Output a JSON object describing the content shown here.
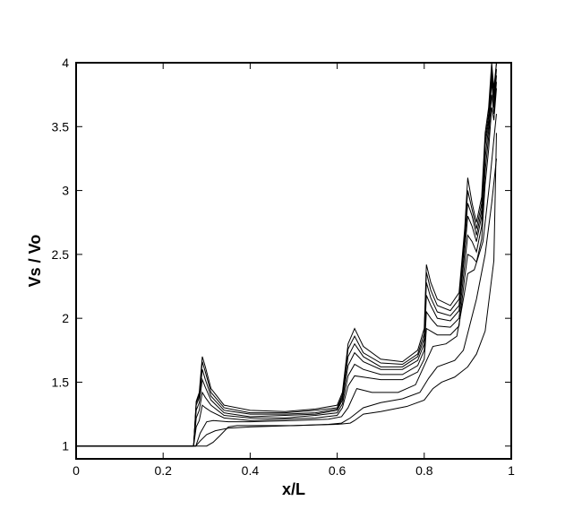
{
  "chart_data": {
    "type": "line",
    "xlabel": "x/L",
    "ylabel": "Vs / Vo",
    "xlim": [
      0,
      1
    ],
    "ylim": [
      0.9,
      4
    ],
    "xticks": [
      0,
      0.2,
      0.4,
      0.6,
      0.8,
      1
    ],
    "xtick_labels": [
      "0",
      "0.2",
      "0.4",
      "0.6",
      "0.8",
      "1"
    ],
    "yticks": [
      1,
      1.5,
      2,
      2.5,
      3,
      3.5,
      4
    ],
    "ytick_labels": [
      "1",
      "1.5",
      "2",
      "2.5",
      "3",
      "3.5",
      "4"
    ],
    "grid": false,
    "series": [
      {
        "x": [
          0,
          0.27,
          0.276,
          0.283,
          0.29,
          0.297,
          0.31,
          0.34,
          0.4,
          0.48,
          0.55,
          0.6,
          0.612,
          0.625,
          0.64,
          0.66,
          0.7,
          0.75,
          0.785,
          0.8,
          0.805,
          0.815,
          0.83,
          0.86,
          0.88,
          0.893,
          0.9,
          0.91,
          0.92,
          0.932,
          0.94,
          0.948,
          0.955,
          0.96,
          0.966
        ],
        "y": [
          1,
          1,
          1.35,
          1.42,
          1.7,
          1.62,
          1.45,
          1.32,
          1.28,
          1.27,
          1.29,
          1.32,
          1.42,
          1.8,
          1.92,
          1.78,
          1.68,
          1.66,
          1.75,
          1.92,
          2.42,
          2.28,
          2.15,
          2.1,
          2.2,
          2.7,
          3.1,
          2.9,
          2.75,
          2.95,
          3.45,
          3.65,
          4.0,
          3.8,
          4.0
        ]
      },
      {
        "x": [
          0,
          0.27,
          0.276,
          0.283,
          0.29,
          0.297,
          0.31,
          0.34,
          0.4,
          0.48,
          0.55,
          0.6,
          0.612,
          0.625,
          0.64,
          0.66,
          0.7,
          0.75,
          0.785,
          0.8,
          0.805,
          0.815,
          0.83,
          0.86,
          0.88,
          0.893,
          0.9,
          0.91,
          0.92,
          0.932,
          0.94,
          0.948,
          0.955,
          0.96,
          0.966
        ],
        "y": [
          1,
          1,
          1.34,
          1.4,
          1.66,
          1.58,
          1.42,
          1.3,
          1.26,
          1.26,
          1.28,
          1.3,
          1.4,
          1.76,
          1.86,
          1.73,
          1.65,
          1.64,
          1.72,
          1.88,
          2.36,
          2.22,
          2.1,
          2.06,
          2.15,
          2.65,
          3.0,
          2.85,
          2.7,
          2.9,
          3.4,
          3.6,
          3.95,
          3.75,
          4.0
        ]
      },
      {
        "x": [
          0,
          0.27,
          0.276,
          0.283,
          0.29,
          0.297,
          0.31,
          0.34,
          0.4,
          0.48,
          0.55,
          0.6,
          0.612,
          0.625,
          0.64,
          0.66,
          0.7,
          0.75,
          0.785,
          0.8,
          0.805,
          0.815,
          0.83,
          0.86,
          0.88,
          0.893,
          0.9,
          0.91,
          0.92,
          0.932,
          0.94,
          0.948,
          0.955,
          0.96,
          0.966
        ],
        "y": [
          1,
          1,
          1.32,
          1.38,
          1.6,
          1.52,
          1.39,
          1.28,
          1.25,
          1.25,
          1.26,
          1.29,
          1.38,
          1.7,
          1.8,
          1.7,
          1.62,
          1.62,
          1.7,
          1.84,
          2.28,
          2.16,
          2.05,
          2.02,
          2.1,
          2.6,
          2.9,
          2.8,
          2.65,
          2.85,
          3.35,
          3.55,
          3.9,
          3.7,
          3.95
        ]
      },
      {
        "x": [
          0,
          0.27,
          0.276,
          0.283,
          0.29,
          0.297,
          0.31,
          0.34,
          0.4,
          0.48,
          0.55,
          0.6,
          0.612,
          0.625,
          0.64,
          0.66,
          0.7,
          0.75,
          0.785,
          0.8,
          0.805,
          0.815,
          0.83,
          0.86,
          0.88,
          0.893,
          0.9,
          0.91,
          0.92,
          0.932,
          0.94,
          0.948,
          0.955,
          0.96,
          0.966
        ],
        "y": [
          1,
          1,
          1.28,
          1.34,
          1.52,
          1.46,
          1.36,
          1.26,
          1.23,
          1.24,
          1.25,
          1.28,
          1.36,
          1.63,
          1.73,
          1.66,
          1.6,
          1.6,
          1.67,
          1.8,
          2.18,
          2.1,
          2.0,
          1.98,
          2.06,
          2.52,
          2.8,
          2.72,
          2.6,
          2.8,
          3.25,
          3.5,
          3.85,
          3.65,
          3.9
        ]
      },
      {
        "x": [
          0,
          0.27,
          0.276,
          0.283,
          0.29,
          0.297,
          0.31,
          0.34,
          0.4,
          0.48,
          0.55,
          0.6,
          0.612,
          0.625,
          0.64,
          0.66,
          0.7,
          0.75,
          0.785,
          0.8,
          0.805,
          0.815,
          0.83,
          0.86,
          0.88,
          0.893,
          0.9,
          0.91,
          0.92,
          0.932,
          0.94,
          0.948,
          0.955,
          0.96,
          0.966
        ],
        "y": [
          1,
          1,
          1.22,
          1.28,
          1.42,
          1.38,
          1.32,
          1.24,
          1.22,
          1.22,
          1.24,
          1.26,
          1.33,
          1.55,
          1.64,
          1.6,
          1.56,
          1.56,
          1.63,
          1.75,
          2.05,
          2.0,
          1.94,
          1.93,
          2.0,
          2.42,
          2.65,
          2.6,
          2.52,
          2.72,
          3.15,
          3.42,
          3.75,
          3.6,
          3.85
        ]
      },
      {
        "x": [
          0,
          0.27,
          0.276,
          0.283,
          0.29,
          0.297,
          0.31,
          0.34,
          0.4,
          0.48,
          0.55,
          0.6,
          0.612,
          0.625,
          0.64,
          0.66,
          0.7,
          0.75,
          0.785,
          0.8,
          0.805,
          0.815,
          0.83,
          0.86,
          0.88,
          0.893,
          0.9,
          0.91,
          0.92,
          0.932,
          0.94,
          0.948,
          0.955,
          0.96,
          0.966
        ],
        "y": [
          1,
          1,
          1.15,
          1.2,
          1.32,
          1.3,
          1.27,
          1.22,
          1.2,
          1.21,
          1.22,
          1.24,
          1.3,
          1.47,
          1.55,
          1.54,
          1.52,
          1.52,
          1.58,
          1.68,
          1.92,
          1.9,
          1.87,
          1.87,
          1.94,
          2.32,
          2.5,
          2.48,
          2.44,
          2.62,
          3.05,
          3.32,
          3.65,
          3.55,
          3.8
        ]
      },
      {
        "x": [
          0,
          0.275,
          0.285,
          0.3,
          0.315,
          0.35,
          0.4,
          0.5,
          0.58,
          0.61,
          0.625,
          0.645,
          0.68,
          0.74,
          0.78,
          0.8,
          0.82,
          0.85,
          0.875,
          0.89,
          0.9,
          0.915,
          0.935,
          0.95,
          0.96,
          0.966
        ],
        "y": [
          1,
          1,
          1.1,
          1.19,
          1.2,
          1.19,
          1.19,
          1.2,
          1.21,
          1.23,
          1.3,
          1.45,
          1.42,
          1.42,
          1.48,
          1.63,
          1.78,
          1.8,
          1.86,
          2.15,
          2.35,
          2.38,
          2.6,
          3.05,
          3.4,
          3.6
        ]
      },
      {
        "x": [
          0,
          0.275,
          0.285,
          0.3,
          0.32,
          0.35,
          0.4,
          0.5,
          0.58,
          0.61,
          0.63,
          0.66,
          0.7,
          0.75,
          0.79,
          0.81,
          0.83,
          0.87,
          0.89,
          0.905,
          0.92,
          0.94,
          0.955,
          0.966
        ],
        "y": [
          1,
          1,
          1.04,
          1.09,
          1.12,
          1.14,
          1.15,
          1.16,
          1.17,
          1.18,
          1.22,
          1.3,
          1.34,
          1.37,
          1.42,
          1.53,
          1.62,
          1.67,
          1.75,
          1.95,
          2.15,
          2.5,
          2.9,
          3.25
        ]
      },
      {
        "x": [
          0,
          0.28,
          0.3,
          0.315,
          0.33,
          0.35,
          0.37,
          0.4,
          0.5,
          0.6,
          0.63,
          0.64,
          0.66,
          0.7,
          0.76,
          0.8,
          0.82,
          0.84,
          0.87,
          0.9,
          0.92,
          0.94,
          0.96,
          0.966
        ],
        "y": [
          1,
          1,
          1.0,
          1.03,
          1.08,
          1.15,
          1.16,
          1.16,
          1.16,
          1.17,
          1.18,
          1.2,
          1.25,
          1.27,
          1.31,
          1.36,
          1.45,
          1.5,
          1.54,
          1.62,
          1.72,
          1.9,
          2.45,
          3.45
        ]
      }
    ]
  }
}
